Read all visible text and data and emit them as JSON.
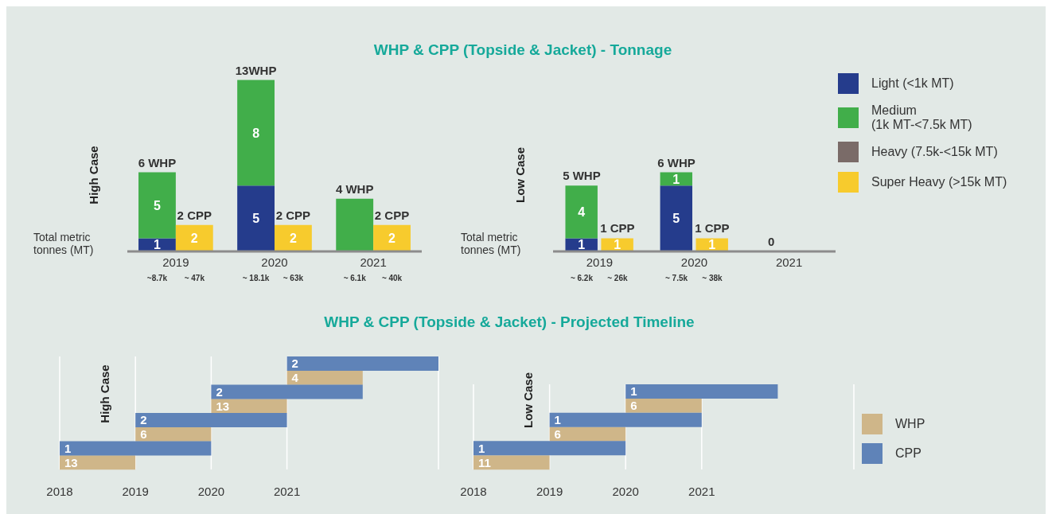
{
  "chart_data": [
    {
      "type": "bar",
      "title": "WHP & CPP (Topside & Jacket) - Tonnage",
      "ylabel": "High Case",
      "categories": [
        "~8.7k",
        "~ 47k",
        "~ 18.1k",
        "~ 63k",
        "~ 6.1k",
        "~ 40k"
      ],
      "stacked": true,
      "series": [
        {
          "color": "#253c8c",
          "values": [
            1,
            null,
            5,
            null,
            null,
            null
          ],
          "value_labels": [
            "1",
            null,
            "5",
            null,
            null,
            null
          ]
        },
        {
          "color": "#41ae4a",
          "values": [
            5,
            null,
            8,
            null,
            4,
            null
          ],
          "value_labels": [
            "5",
            null,
            "8",
            null,
            null,
            null
          ]
        },
        {
          "color": "#f7cb2d",
          "values": [
            null,
            2,
            null,
            2,
            null,
            2
          ],
          "value_labels": [
            null,
            "2",
            null,
            "2",
            null,
            "2"
          ]
        }
      ],
      "totals": [
        "6 WHP",
        "2 CPP",
        "13WHP",
        "2 CPP",
        "4 WHP",
        "2 CPP"
      ],
      "annotations": [
        "Total metric tonnes (MT)",
        "2019",
        "2020",
        "2021"
      ]
    },
    {
      "type": "bar",
      "ylabel": "Low Case",
      "categories": [
        "~ 6.2k",
        "~ 26k",
        "~ 7.5k",
        "~ 38k",
        null,
        null
      ],
      "stacked": true,
      "data_labels": true,
      "legend": "right",
      "series": [
        {
          "name": "Light (<1k MT)",
          "color": "#253c8c",
          "values": [
            1,
            null,
            5,
            null,
            null,
            null
          ]
        },
        {
          "name": "Medium\n(1k MT-<7.5k MT)",
          "color": "#41ae4a",
          "values": [
            4,
            null,
            1,
            null,
            null,
            null
          ]
        },
        {
          "name": "Heavy (7.5k-<15k MT)",
          "color": "#7a6b68",
          "values": [
            null,
            null,
            null,
            null,
            null,
            null
          ]
        },
        {
          "name": "Super Heavy (>15k MT)",
          "color": "#f7cb2d",
          "values": [
            null,
            1,
            null,
            1,
            null,
            null
          ]
        }
      ],
      "totals": [
        "5 WHP",
        "1 CPP",
        "6 WHP",
        "1 CPP",
        "0",
        null
      ],
      "annotations": [
        "Total metric tonnes (MT)",
        "2019",
        "2020",
        "2021"
      ]
    },
    {
      "type": "bar",
      "orientation": "horizontal",
      "title": "WHP & CPP (Topside & Jacket) - Projected Timeline",
      "ylabel": "High Case",
      "categories": [
        null,
        null,
        null,
        null,
        null,
        null,
        null,
        null
      ],
      "xlim": [
        2018,
        2023
      ],
      "xticks": [
        2018,
        2019,
        2020,
        2021
      ],
      "grid": "x",
      "series": [
        {
          "color": "#cfb689",
          "values": [
            null,
            1,
            null,
            1,
            null,
            1,
            null,
            1
          ],
          "base": [
            null,
            2021,
            null,
            2020,
            null,
            2019,
            null,
            2018
          ]
        },
        {
          "color": "#5f83b8",
          "values": [
            2,
            null,
            2,
            null,
            2,
            null,
            2,
            null
          ],
          "base": [
            2021,
            null,
            2020,
            null,
            2019,
            null,
            2018,
            null
          ]
        }
      ],
      "annotations": [
        "2",
        "4",
        "2",
        "13",
        "2",
        "6",
        "1",
        "13"
      ]
    },
    {
      "type": "bar",
      "orientation": "horizontal",
      "ylabel": "Low Case",
      "categories": [
        null,
        null,
        null,
        null,
        null,
        null
      ],
      "xlim": [
        2018,
        2023
      ],
      "xticks": [
        2018,
        2019,
        2020,
        2021
      ],
      "grid": "x",
      "legend": "right",
      "series": [
        {
          "name": "WHP",
          "color": "#cfb689",
          "values": [
            null,
            1,
            null,
            1,
            null,
            1
          ],
          "base": [
            null,
            2020,
            null,
            2019,
            null,
            2018
          ]
        },
        {
          "name": "CPP",
          "color": "#5f83b8",
          "values": [
            2,
            null,
            2,
            null,
            2,
            null
          ],
          "base": [
            2020,
            null,
            2019,
            null,
            2018,
            null
          ]
        }
      ],
      "annotations": [
        "1",
        "6",
        "1",
        "6",
        "1",
        "11"
      ]
    }
  ]
}
